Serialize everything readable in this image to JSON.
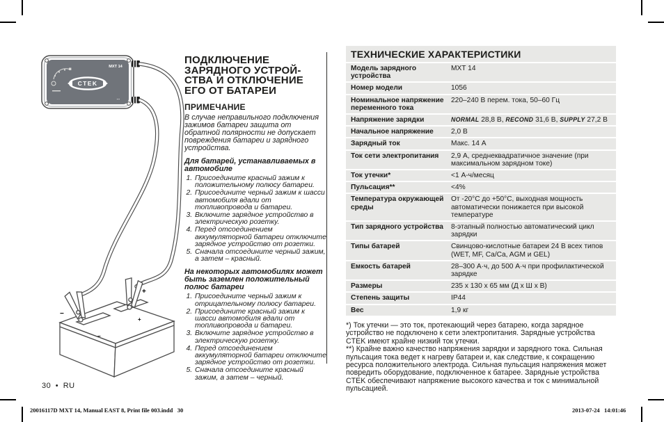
{
  "illustration": {
    "brand": "CTEK",
    "model": "MXT 14",
    "plus_label": "+",
    "minus_label": "−"
  },
  "left_column": {
    "title_lines": [
      "ПОДКЛЮЧЕНИЕ",
      "ЗАРЯДНОГО УСТРОЙ-",
      "СТВА И ОТКЛЮЧЕНИЕ",
      "ЕГО ОТ БАТАРЕИ"
    ],
    "note_heading": "ПРИМЕЧАНИЕ",
    "note_body": "В случае неправильного подключения зажимов батареи защита от обратной полярности не допускает повреждения батареи и зарядного устройства.",
    "section1": {
      "heading": "Для батарей, устанавливаемых в автомобиле",
      "steps": [
        "Присоедините красный зажим к положительному полюсу батареи.",
        "Присоедините черный зажим к шасси автомобиля вдали от топливопровода и батареи.",
        "Включите зарядное устройство в электрическую розетку.",
        "Перед отсоединением аккумуляторной батареи отключите зарядное устройство от розетки.",
        "Сначала отсоедините черный зажим, а затем – красный."
      ]
    },
    "section2": {
      "heading": "На некоторых автомобилях может быть заземлен положительный полюс батареи",
      "steps": [
        "Присоедините черный зажим к отрицательному полюсу батареи.",
        "Присоедините красный зажим к шасси автомобиля вдали от топливопровода и батареи.",
        "Включите зарядное устройство в электрическую розетку.",
        "Перед отсоединением аккумуляторной батареи отключите зарядное устройство от розетки.",
        "Сначала отсоедините красный зажим, а затем – черный."
      ]
    }
  },
  "specs": {
    "title": "ТЕХНИЧЕСКИЕ ХАРАКТЕРИСТИКИ",
    "rows": [
      {
        "label": "Модель зарядного устройства",
        "value": "MXT 14"
      },
      {
        "label": "Номер модели",
        "value": "1056"
      },
      {
        "label": "Номинальное напряжение переменного тока",
        "value": "220–240 В перем. тока, 50–60 Гц"
      },
      {
        "label": "Напряжение зарядки",
        "segments": [
          {
            "text": "NORMAL",
            "emph": true
          },
          {
            "text": " 28,8 В, "
          },
          {
            "text": "RECOND",
            "emph": true
          },
          {
            "text": " 31,6 В, "
          },
          {
            "text": "SUPPLY",
            "emph": true
          },
          {
            "text": " 27,2 В"
          }
        ]
      },
      {
        "label": "Начальное напряжение",
        "value": "2,0 В"
      },
      {
        "label": "Зарядный ток",
        "value": "Макс. 14 А"
      },
      {
        "label": "Ток сети электропитания",
        "value": "2,9 А, среднеквадратичное значение (при максимальном зарядном токе)"
      },
      {
        "label": "Ток утечки*",
        "value": "<1 А-ч/месяц"
      },
      {
        "label": "Пульсация**",
        "value": "<4%"
      },
      {
        "label": "Температура окружающей среды",
        "value": "От -20°C до +50°C, выходная мощность автоматически понижается при высокой температуре"
      },
      {
        "label": "Тип зарядного устройства",
        "value": "8-этапный полностью автоматический цикл зарядки"
      },
      {
        "label": "Типы батарей",
        "value": "Свинцово-кислотные батареи 24 В всех типов (WET, MF, Ca/Ca, AGM и GEL)"
      },
      {
        "label": "Емкость батарей",
        "value": "28–300 А·ч, до 500 А·ч при профилактической зарядке"
      },
      {
        "label": "Размеры",
        "value": "235 x 130 x 65 мм (Д х Ш х В)"
      },
      {
        "label": "Степень защиты",
        "value": "IP44"
      },
      {
        "label": "Вес",
        "value": "1,9 кг"
      }
    ],
    "footnotes": [
      "*) Ток утечки — это ток, протекающий через батарею, когда зарядное устройство не подключено к сети электропитания. Зарядные устройства CTEK имеют крайне низкий ток утечки.",
      "**) Крайне важно качество напряжения зарядки и зарядного тока. Сильная пульсация тока ведет к нагреву батареи и, как следствие, к сокращению ресурса положительного электрода. Сильная пульсация напряжения может повредить оборудование, подключенное к батарее. Зарядные устройства CTEK обеспечивают напряжение высокого качества и ток с минимальной пульсацией."
    ]
  },
  "footer": {
    "page_label": "30 • RU",
    "print_left": "20016117D MXT 14, Manual EAST 8, Print file 003.indd   30",
    "print_right": "2013-07-24   14:01:46"
  }
}
